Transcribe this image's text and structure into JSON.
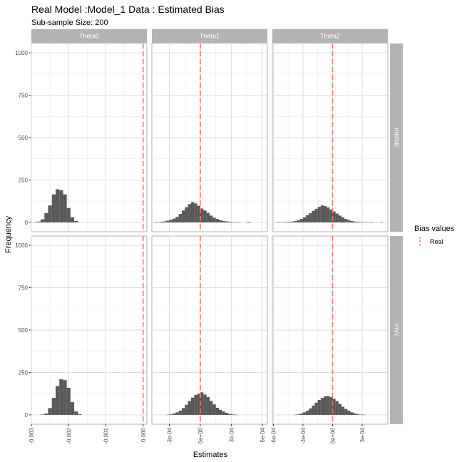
{
  "chart_data": {
    "type": "bar",
    "title": "Real Model :Model_1 Data : Estimated Bias",
    "subtitle": "Sub-sample Size: 200",
    "xlabel": "Estimates",
    "ylabel": "Frequency",
    "grid": true,
    "legend": {
      "title": "Bias values",
      "placement": "right",
      "entries": [
        {
          "label": "Real",
          "color": "#F8766D",
          "linetype": "dashed"
        }
      ]
    },
    "bar_color": "#595959",
    "reference_line_color": "#F8766D",
    "facet_cols": [
      "Theta0",
      "Theta1",
      "Theta2"
    ],
    "facet_rows": [
      "mMSE",
      "mVc"
    ],
    "ylim": [
      -55,
      1055
    ],
    "yticks": [
      0,
      250,
      500,
      750,
      1000
    ],
    "xaxes": [
      {
        "xlim": [
          -0.003,
          0.0001
        ],
        "ticks": [
          -0.003,
          -0.002,
          -0.001,
          0.0
        ],
        "tick_labels": [
          "-0.003",
          "-0.002",
          "-0.001",
          "0.000"
        ]
      },
      {
        "xlim": [
          -0.00047,
          0.00065
        ],
        "ticks": [
          -0.0003,
          0.0,
          0.0003,
          0.0006
        ],
        "tick_labels": [
          "-3e-04",
          "0e+00",
          "3e-04",
          "6e-04"
        ]
      },
      {
        "xlim": [
          -0.00061,
          0.00056
        ],
        "ticks": [
          -0.0006,
          -0.0003,
          0.0,
          0.0003
        ],
        "tick_labels": [
          "-6e-04",
          "-3e-04",
          "0e+00",
          "3e-04"
        ]
      }
    ],
    "real_value": 0.0,
    "panels": [
      {
        "row": "mMSE",
        "col": "Theta0",
        "bin_width": 0.0001,
        "bins_start": [
          -0.00295,
          -0.00285,
          -0.00275,
          -0.00265,
          -0.00255,
          -0.00245,
          -0.00235,
          -0.00225,
          -0.00215,
          -0.00205,
          -0.00195,
          -0.00185
        ],
        "counts": [
          2,
          5,
          18,
          55,
          100,
          165,
          195,
          190,
          165,
          85,
          30,
          8
        ]
      },
      {
        "row": "mMSE",
        "col": "Theta1",
        "bin_width": 3e-05,
        "bins_start": [
          -0.00045,
          -0.00042,
          -0.00039,
          -0.00036,
          -0.00033,
          -0.0003,
          -0.00027,
          -0.00024,
          -0.00021,
          -0.00018,
          -0.00015,
          -0.00012,
          -9e-05,
          -6e-05,
          -3e-05,
          0.0,
          3e-05,
          6e-05,
          9e-05,
          0.00012,
          0.00015,
          0.00018,
          0.00021,
          0.00024,
          0.00027,
          0.0003,
          0.00033,
          0.00036,
          0.00039,
          0.00042,
          0.00045,
          0.00048
        ],
        "counts": [
          1,
          2,
          4,
          6,
          10,
          15,
          22,
          32,
          50,
          70,
          90,
          108,
          120,
          112,
          98,
          82,
          70,
          56,
          40,
          28,
          20,
          14,
          8,
          6,
          4,
          2,
          1,
          1,
          0,
          0,
          4,
          0
        ]
      },
      {
        "row": "mMSE",
        "col": "Theta2",
        "bin_width": 3e-05,
        "bins_start": [
          -0.00057,
          -0.00054,
          -0.00051,
          -0.00048,
          -0.00045,
          -0.00042,
          -0.00039,
          -0.00036,
          -0.00033,
          -0.0003,
          -0.00027,
          -0.00024,
          -0.00021,
          -0.00018,
          -0.00015,
          -0.00012,
          -9e-05,
          -6e-05,
          -3e-05,
          0.0,
          3e-05,
          6e-05,
          9e-05,
          0.00012,
          0.00015,
          0.00018,
          0.00021,
          0.00024,
          0.00027,
          0.0003,
          0.00033,
          0.00036,
          0.00039,
          0.00042,
          0.00045,
          0.00048
        ],
        "counts": [
          1,
          2,
          2,
          3,
          4,
          5,
          8,
          12,
          20,
          30,
          42,
          55,
          68,
          80,
          92,
          100,
          96,
          88,
          76,
          65,
          52,
          40,
          30,
          20,
          14,
          8,
          5,
          4,
          3,
          2,
          1,
          1,
          1,
          0,
          0,
          1
        ]
      },
      {
        "row": "mVc",
        "col": "Theta0",
        "bin_width": 0.0001,
        "bins_start": [
          -0.00275,
          -0.00265,
          -0.00255,
          -0.00245,
          -0.00235,
          -0.00225,
          -0.00215,
          -0.00205,
          -0.00195,
          -0.00185,
          -0.00175
        ],
        "counts": [
          2,
          8,
          40,
          100,
          170,
          210,
          205,
          160,
          75,
          20,
          4
        ]
      },
      {
        "row": "mVc",
        "col": "Theta1",
        "bin_width": 3e-05,
        "bins_start": [
          -0.00033,
          -0.0003,
          -0.00027,
          -0.00024,
          -0.00021,
          -0.00018,
          -0.00015,
          -0.00012,
          -9e-05,
          -6e-05,
          -3e-05,
          0.0,
          3e-05,
          6e-05,
          9e-05,
          0.00012,
          0.00015,
          0.00018,
          0.00021,
          0.00024,
          0.00027,
          0.0003,
          0.00033
        ],
        "counts": [
          1,
          3,
          8,
          15,
          25,
          40,
          60,
          82,
          102,
          118,
          125,
          133,
          120,
          105,
          82,
          62,
          42,
          30,
          20,
          12,
          6,
          3,
          1
        ]
      },
      {
        "row": "mVc",
        "col": "Theta2",
        "bin_width": 3e-05,
        "bins_start": [
          -0.00039,
          -0.00036,
          -0.00033,
          -0.0003,
          -0.00027,
          -0.00024,
          -0.00021,
          -0.00018,
          -0.00015,
          -0.00012,
          -9e-05,
          -6e-05,
          -3e-05,
          0.0,
          3e-05,
          6e-05,
          9e-05,
          0.00012,
          0.00015,
          0.00018,
          0.00021,
          0.00024,
          0.00027,
          0.0003
        ],
        "counts": [
          1,
          3,
          8,
          15,
          25,
          38,
          55,
          72,
          88,
          100,
          110,
          112,
          105,
          95,
          82,
          65,
          48,
          35,
          25,
          15,
          9,
          5,
          2,
          1
        ]
      }
    ]
  }
}
